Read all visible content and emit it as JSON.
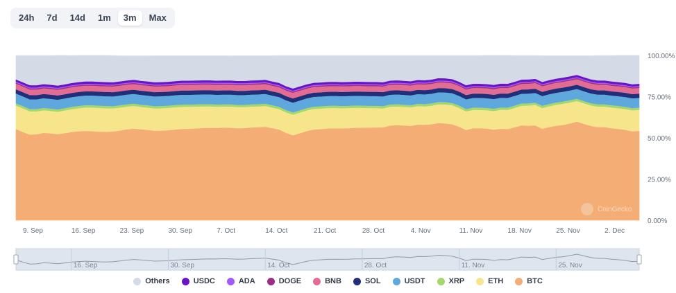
{
  "range_selector": {
    "options": [
      "24h",
      "7d",
      "14d",
      "1m",
      "3m",
      "Max"
    ],
    "selected": "3m"
  },
  "watermark": "CoinGecko",
  "chart_data": {
    "type": "area",
    "stacked": true,
    "title": "",
    "xlabel": "",
    "ylabel": "",
    "ylim": [
      0,
      100
    ],
    "y_ticks": [
      "0.00%",
      "25.00%",
      "50.00%",
      "75.00%",
      "100.00%"
    ],
    "x_ticks": [
      "9. Sep",
      "16. Sep",
      "23. Sep",
      "30. Sep",
      "7. Oct",
      "14. Oct",
      "21. Oct",
      "28. Oct",
      "4. Nov",
      "11. Nov",
      "18. Nov",
      "25. Nov",
      "2. Dec"
    ],
    "navigator_ticks": [
      "16. Sep",
      "30. Sep",
      "14. Oct",
      "28. Oct",
      "11. Nov",
      "25. Nov"
    ],
    "x_range": {
      "start_day": "8. Sep",
      "end_day": "7. Dec",
      "points": 91
    },
    "series": [
      {
        "name": "BTC",
        "color": "#f4ad74",
        "values": [
          55.4,
          53.6,
          52.0,
          52.2,
          53.1,
          52.8,
          52.3,
          52.9,
          53.6,
          54.0,
          54.3,
          54.1,
          53.8,
          53.7,
          53.9,
          54.5,
          55.2,
          55.7,
          55.3,
          54.9,
          54.4,
          54.5,
          54.7,
          55.1,
          55.5,
          55.6,
          55.8,
          56.0,
          56.2,
          56.1,
          56.3,
          56.2,
          55.9,
          56.0,
          56.4,
          56.5,
          56.8,
          56.0,
          55.1,
          53.1,
          51.6,
          52.9,
          54.2,
          55.1,
          55.4,
          55.8,
          55.9,
          55.8,
          55.9,
          56.2,
          56.2,
          56.3,
          56.4,
          56.4,
          57.5,
          57.8,
          57.6,
          57.3,
          58.1,
          58.0,
          58.3,
          59.1,
          58.8,
          58.3,
          56.8,
          54.8,
          55.9,
          55.9,
          55.7,
          55.0,
          55.6,
          55.4,
          56.5,
          57.6,
          57.4,
          57.6,
          55.6,
          56.6,
          57.4,
          57.9,
          58.8,
          59.9,
          58.6,
          57.3,
          56.6,
          56.6,
          55.9,
          55.5,
          54.9,
          54.0,
          54.3
        ]
      },
      {
        "name": "ETH",
        "color": "#f7e58b",
        "values": [
          14.2,
          14.3,
          14.1,
          13.9,
          13.7,
          13.6,
          13.6,
          13.7,
          13.8,
          14.0,
          14.1,
          14.3,
          14.4,
          14.3,
          14.0,
          13.9,
          13.8,
          13.7,
          13.5,
          13.5,
          13.5,
          13.5,
          13.5,
          13.5,
          13.4,
          13.3,
          13.2,
          13.1,
          12.9,
          12.8,
          12.7,
          12.8,
          12.8,
          12.7,
          12.6,
          12.6,
          12.6,
          12.4,
          12.4,
          12.4,
          12.5,
          12.5,
          12.5,
          12.5,
          12.4,
          12.3,
          12.3,
          12.2,
          12.2,
          12.1,
          12.0,
          11.8,
          11.7,
          11.5,
          11.4,
          11.3,
          11.2,
          11.2,
          11.2,
          11.1,
          11.2,
          11.3,
          11.5,
          11.5,
          11.4,
          11.3,
          11.1,
          11.1,
          11.1,
          11.3,
          11.5,
          11.6,
          11.7,
          11.9,
          12.2,
          12.4,
          12.5,
          12.6,
          12.7,
          12.8,
          12.7,
          12.5,
          12.4,
          12.4,
          12.4,
          12.4,
          12.5,
          12.5,
          12.6,
          12.7,
          12.7
        ]
      },
      {
        "name": "XRP",
        "color": "#a3d96a",
        "values": [
          1.4,
          1.4,
          1.4,
          1.4,
          1.4,
          1.4,
          1.4,
          1.4,
          1.4,
          1.4,
          1.4,
          1.4,
          1.4,
          1.4,
          1.4,
          1.4,
          1.4,
          1.4,
          1.4,
          1.4,
          1.4,
          1.4,
          1.4,
          1.4,
          1.4,
          1.4,
          1.4,
          1.4,
          1.4,
          1.4,
          1.4,
          1.4,
          1.4,
          1.4,
          1.4,
          1.4,
          1.4,
          1.4,
          1.4,
          1.4,
          1.4,
          1.4,
          1.4,
          1.4,
          1.4,
          1.4,
          1.4,
          1.4,
          1.4,
          1.4,
          1.4,
          1.4,
          1.4,
          1.4,
          1.4,
          1.4,
          1.4,
          1.4,
          1.4,
          1.4,
          1.4,
          1.4,
          1.4,
          1.4,
          1.4,
          1.4,
          1.4,
          1.4,
          1.4,
          1.4,
          1.4,
          1.4,
          1.4,
          1.4,
          1.4,
          1.4,
          1.4,
          1.4,
          1.4,
          1.4,
          1.4,
          1.4,
          1.4,
          1.4,
          1.4,
          1.4,
          1.4,
          1.4,
          1.4,
          1.4,
          1.4
        ]
      },
      {
        "name": "USDT",
        "color": "#5fa8dd",
        "values": [
          5.9,
          5.9,
          5.9,
          5.9,
          5.9,
          5.9,
          5.9,
          5.9,
          5.9,
          5.9,
          5.9,
          5.9,
          5.9,
          5.9,
          5.9,
          5.9,
          5.9,
          5.9,
          5.9,
          5.9,
          5.9,
          5.9,
          5.9,
          5.9,
          5.9,
          5.9,
          5.9,
          5.9,
          5.9,
          5.9,
          5.9,
          5.9,
          5.9,
          5.9,
          5.9,
          5.9,
          5.9,
          5.9,
          5.9,
          5.9,
          5.9,
          5.9,
          5.9,
          5.9,
          5.9,
          5.9,
          5.9,
          5.9,
          5.9,
          5.9,
          5.9,
          5.9,
          5.9,
          5.9,
          5.9,
          5.9,
          5.9,
          5.9,
          5.9,
          5.9,
          5.9,
          5.9,
          5.9,
          5.9,
          5.9,
          5.9,
          5.9,
          5.9,
          5.9,
          5.9,
          5.9,
          5.9,
          5.9,
          5.9,
          5.9,
          5.9,
          5.9,
          5.9,
          5.9,
          5.9,
          5.9,
          5.9,
          5.9,
          5.9,
          5.9,
          5.9,
          5.9,
          5.9,
          5.9,
          5.9,
          5.9
        ]
      },
      {
        "name": "SOL",
        "color": "#1f2f7a",
        "values": [
          2.6,
          2.6,
          2.6,
          2.6,
          2.6,
          2.6,
          2.6,
          2.6,
          2.6,
          2.6,
          2.6,
          2.6,
          2.6,
          2.6,
          2.6,
          2.6,
          2.6,
          2.6,
          2.6,
          2.6,
          2.6,
          2.6,
          2.6,
          2.6,
          2.6,
          2.6,
          2.6,
          2.6,
          2.6,
          2.6,
          2.6,
          2.6,
          2.6,
          2.6,
          2.6,
          2.6,
          2.6,
          2.6,
          2.6,
          2.6,
          2.6,
          2.6,
          2.6,
          2.6,
          2.6,
          2.6,
          2.6,
          2.6,
          2.6,
          2.6,
          2.6,
          2.6,
          2.6,
          2.6,
          2.6,
          2.6,
          2.6,
          2.6,
          2.6,
          2.6,
          2.6,
          2.6,
          2.6,
          2.6,
          2.6,
          2.6,
          2.6,
          2.6,
          2.6,
          2.6,
          2.6,
          2.6,
          2.6,
          2.6,
          2.6,
          2.6,
          2.6,
          2.6,
          2.6,
          2.6,
          2.6,
          2.6,
          2.6,
          2.6,
          2.6,
          2.6,
          2.6,
          2.6,
          2.6,
          2.6,
          2.6
        ]
      },
      {
        "name": "BNB",
        "color": "#e36c93",
        "values": [
          3.4,
          3.4,
          3.4,
          3.4,
          3.4,
          3.4,
          3.4,
          3.4,
          3.4,
          3.4,
          3.4,
          3.4,
          3.4,
          3.4,
          3.4,
          3.4,
          3.4,
          3.4,
          3.4,
          3.4,
          3.4,
          3.4,
          3.4,
          3.4,
          3.4,
          3.4,
          3.4,
          3.4,
          3.4,
          3.4,
          3.4,
          3.4,
          3.4,
          3.4,
          3.4,
          3.4,
          3.4,
          3.4,
          3.4,
          3.4,
          3.4,
          3.4,
          3.4,
          3.4,
          3.4,
          3.4,
          3.4,
          3.4,
          3.4,
          3.4,
          3.4,
          3.4,
          3.4,
          3.4,
          3.4,
          3.4,
          3.4,
          3.4,
          3.4,
          3.4,
          3.4,
          3.4,
          3.4,
          3.4,
          3.4,
          3.4,
          3.4,
          3.4,
          3.4,
          3.4,
          3.4,
          3.4,
          3.4,
          3.4,
          3.4,
          3.4,
          3.4,
          3.4,
          3.4,
          3.4,
          3.4,
          3.4,
          3.4,
          3.4,
          3.4,
          3.4,
          3.4,
          3.4,
          3.4,
          3.4,
          3.4
        ]
      },
      {
        "name": "DOGE",
        "color": "#9c2e86",
        "values": [
          0.7,
          0.7,
          0.7,
          0.7,
          0.7,
          0.7,
          0.7,
          0.7,
          0.7,
          0.7,
          0.7,
          0.7,
          0.7,
          0.7,
          0.7,
          0.7,
          0.7,
          0.7,
          0.7,
          0.7,
          0.7,
          0.7,
          0.7,
          0.7,
          0.7,
          0.7,
          0.7,
          0.7,
          0.7,
          0.7,
          0.7,
          0.7,
          0.7,
          0.7,
          0.7,
          0.7,
          0.7,
          0.7,
          0.7,
          0.7,
          0.7,
          0.7,
          0.7,
          0.7,
          0.7,
          0.7,
          0.7,
          0.7,
          0.7,
          0.7,
          0.7,
          0.7,
          0.7,
          0.7,
          0.7,
          0.7,
          0.7,
          0.7,
          0.7,
          0.7,
          0.7,
          0.7,
          0.7,
          0.7,
          0.7,
          0.7,
          0.7,
          0.7,
          0.7,
          0.7,
          0.7,
          0.7,
          0.7,
          0.7,
          0.7,
          0.7,
          0.7,
          0.7,
          0.7,
          0.7,
          0.7,
          0.7,
          0.7,
          0.7,
          0.7,
          0.7,
          0.7,
          0.7,
          0.7,
          0.7,
          0.7
        ]
      },
      {
        "name": "ADA",
        "color": "#a259ff",
        "values": [
          0.5,
          0.5,
          0.5,
          0.5,
          0.5,
          0.5,
          0.5,
          0.5,
          0.5,
          0.5,
          0.5,
          0.5,
          0.5,
          0.5,
          0.5,
          0.5,
          0.5,
          0.5,
          0.5,
          0.5,
          0.5,
          0.5,
          0.5,
          0.5,
          0.5,
          0.5,
          0.5,
          0.5,
          0.5,
          0.5,
          0.5,
          0.5,
          0.5,
          0.5,
          0.5,
          0.5,
          0.5,
          0.5,
          0.5,
          0.5,
          0.5,
          0.5,
          0.5,
          0.5,
          0.5,
          0.5,
          0.5,
          0.5,
          0.5,
          0.5,
          0.5,
          0.5,
          0.5,
          0.5,
          0.5,
          0.5,
          0.5,
          0.5,
          0.5,
          0.5,
          0.5,
          0.5,
          0.5,
          0.5,
          0.5,
          0.5,
          0.5,
          0.5,
          0.5,
          0.5,
          0.5,
          0.5,
          0.5,
          0.5,
          0.5,
          0.5,
          0.5,
          0.5,
          0.5,
          0.5,
          0.5,
          0.5,
          0.5,
          0.5,
          0.5,
          0.5,
          0.5,
          0.5,
          0.5,
          0.5,
          0.5
        ]
      },
      {
        "name": "USDC",
        "color": "#6a14c8",
        "values": [
          1.4,
          1.4,
          1.4,
          1.4,
          1.4,
          1.4,
          1.4,
          1.4,
          1.4,
          1.4,
          1.4,
          1.4,
          1.4,
          1.4,
          1.4,
          1.4,
          1.4,
          1.4,
          1.4,
          1.4,
          1.4,
          1.4,
          1.4,
          1.4,
          1.4,
          1.4,
          1.4,
          1.4,
          1.4,
          1.4,
          1.4,
          1.4,
          1.4,
          1.4,
          1.4,
          1.4,
          1.4,
          1.4,
          1.4,
          1.4,
          1.4,
          1.4,
          1.4,
          1.4,
          1.4,
          1.4,
          1.4,
          1.4,
          1.4,
          1.4,
          1.4,
          1.4,
          1.4,
          1.4,
          1.4,
          1.4,
          1.4,
          1.4,
          1.4,
          1.4,
          1.4,
          1.4,
          1.4,
          1.4,
          1.4,
          1.4,
          1.4,
          1.4,
          1.4,
          1.4,
          1.4,
          1.4,
          1.4,
          1.4,
          1.4,
          1.4,
          1.4,
          1.4,
          1.4,
          1.4,
          1.4,
          1.4,
          1.4,
          1.4,
          1.4,
          1.4,
          1.4,
          1.4,
          1.4,
          1.4,
          1.4
        ]
      },
      {
        "name": "Others",
        "color": "#d4dbe6",
        "values": [
          14.5,
          16.2,
          18.0,
          18.0,
          17.3,
          17.7,
          18.3,
          17.6,
          16.7,
          16.2,
          15.8,
          15.8,
          16.0,
          16.2,
          16.2,
          15.6,
          14.9,
          14.5,
          15.1,
          15.5,
          16.1,
          16.0,
          15.8,
          15.4,
          15.1,
          15.1,
          15.0,
          14.9,
          14.9,
          15.1,
          15.0,
          14.9,
          15.3,
          15.3,
          15.0,
          14.9,
          14.6,
          15.6,
          16.6,
          18.6,
          20.0,
          18.7,
          17.4,
          16.5,
          16.3,
          16.0,
          15.9,
          16.1,
          16.0,
          15.8,
          15.9,
          16.0,
          16.0,
          16.2,
          15.2,
          15.0,
          15.3,
          15.6,
          14.8,
          15.0,
          14.6,
          13.7,
          13.8,
          14.3,
          15.9,
          18.0,
          17.1,
          17.1,
          17.4,
          17.9,
          17.1,
          17.2,
          15.9,
          14.6,
          14.5,
          14.1,
          15.9,
          14.8,
          13.9,
          13.3,
          12.5,
          11.6,
          13.0,
          14.3,
          15.1,
          15.1,
          15.7,
          16.2,
          16.7,
          17.5,
          17.2
        ]
      }
    ]
  },
  "legend": [
    {
      "label": "Others",
      "color": "#d4dbe6"
    },
    {
      "label": "USDC",
      "color": "#6a14c8"
    },
    {
      "label": "ADA",
      "color": "#a259ff"
    },
    {
      "label": "DOGE",
      "color": "#9c2e86"
    },
    {
      "label": "BNB",
      "color": "#e36c93"
    },
    {
      "label": "SOL",
      "color": "#1f2f7a"
    },
    {
      "label": "USDT",
      "color": "#5fa8dd"
    },
    {
      "label": "XRP",
      "color": "#a3d96a"
    },
    {
      "label": "ETH",
      "color": "#f7e58b"
    },
    {
      "label": "BTC",
      "color": "#f4ad74"
    }
  ]
}
